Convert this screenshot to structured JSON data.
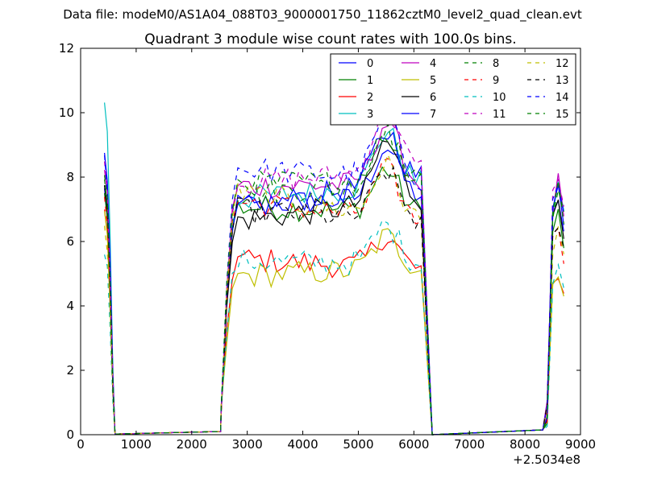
{
  "suptitle": "Data file: modeM0/AS1A04_088T03_9000001750_11862cztM0_level2_quad_clean.evt",
  "chart_data": {
    "type": "line",
    "title": "Quadrant 3 module wise count rates with 100.0s bins.",
    "xlabel": "",
    "ylabel": "",
    "x_offset_label": "+2.5034e8",
    "xlim": [
      0,
      9000
    ],
    "ylim": [
      0,
      12
    ],
    "xticks": [
      0,
      1000,
      2000,
      3000,
      4000,
      5000,
      6000,
      7000,
      8000,
      9000
    ],
    "yticks": [
      0,
      2,
      4,
      6,
      8,
      10,
      12
    ],
    "legend_position": "top-right",
    "legend_columns": 4,
    "colors": [
      "#0000ff",
      "#008000",
      "#ff0000",
      "#00bfbf",
      "#bf00bf",
      "#bfbf00",
      "#000000",
      "#0000ff",
      "#008000",
      "#ff0000",
      "#00bfbf",
      "#bf00bf",
      "#bfbf00",
      "#000000",
      "#0000ff",
      "#008000"
    ],
    "series_names": [
      "0",
      "1",
      "2",
      "3",
      "4",
      "5",
      "6",
      "7",
      "8",
      "9",
      "10",
      "11",
      "12",
      "13",
      "14",
      "15"
    ],
    "dashed_from_index": 8,
    "segments": [
      {
        "start": 430,
        "step": 50,
        "count": 4,
        "end_x": 620,
        "end_y": 0
      },
      {
        "start": 2530,
        "step": 100,
        "count": 37,
        "pre_x": 2520,
        "pre_y": 0.1,
        "end_x": 6330,
        "end_y": 0
      },
      {
        "start": 8400,
        "step": 100,
        "count": 4,
        "pre_x": 8320,
        "pre_y": 0.15
      }
    ],
    "baseline": {
      "from": 620,
      "to": 8320,
      "y": 0.02
    },
    "levels_left": [
      7.6,
      7.4,
      6.9,
      10.4,
      8.3,
      6.8,
      7.7,
      8.9,
      7.9,
      7.3,
      5.7,
      8.4,
      6.4,
      7.6,
      8.6,
      8.1
    ],
    "levels_mid": [
      7.1,
      7.1,
      5.5,
      7.3,
      7.7,
      4.9,
      6.6,
      6.9,
      7.5,
      7.3,
      5.4,
      7.8,
      7.6,
      7.0,
      8.3,
      7.8
    ],
    "levels_right": [
      7.4,
      6.9,
      5.1,
      7.8,
      7.8,
      5.2,
      7.3,
      8.0,
      7.8,
      6.6,
      5.3,
      8.2,
      6.6,
      6.6,
      7.9,
      7.9
    ],
    "peak_boost": [
      1.6,
      1.3,
      1.0,
      1.7,
      1.9,
      1.0,
      1.9,
      1.6,
      1.7,
      1.5,
      1.2,
      2.0,
      1.6,
      1.5,
      1.8,
      1.5
    ],
    "peak_x": 5500,
    "peak_width": 320
  }
}
